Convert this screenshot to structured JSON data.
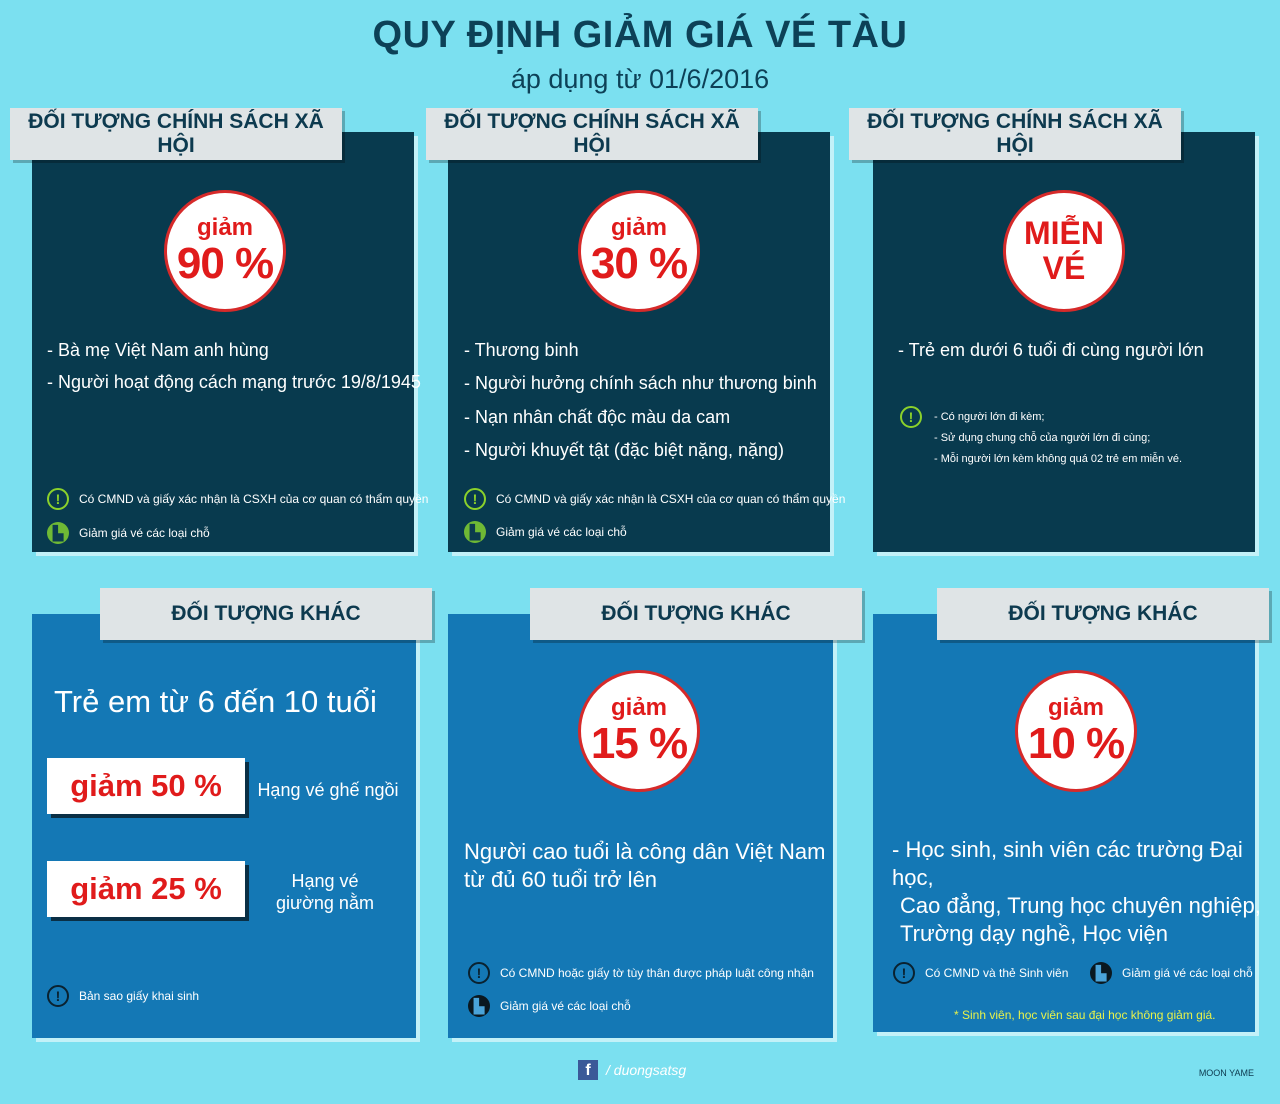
{
  "header": {
    "title": "QUY ĐỊNH GIẢM GIÁ VÉ TÀU",
    "subtitle": "áp dụng từ 01/6/2016"
  },
  "colors": {
    "dark_panel": "#083a4e",
    "blue_panel": "#1478b5",
    "background": "#7be0f0",
    "accent_red": "#e01b1b"
  },
  "panels": [
    {
      "tab": "ĐỐI TƯỢNG CHÍNH SÁCH XÃ HỘI",
      "badge_small": "giảm",
      "badge_big": "90 %",
      "items": [
        "- Bà mẹ Việt Nam anh hùng",
        "- Người hoạt động cách mạng trước 19/8/1945"
      ],
      "note1": "Có CMND và giấy xác nhận là CSXH của cơ quan có thẩm quyền",
      "note2": "Giảm giá vé các loại chỗ"
    },
    {
      "tab": "ĐỐI TƯỢNG CHÍNH SÁCH XÃ HỘI",
      "badge_small": "giảm",
      "badge_big": "30 %",
      "items": [
        "- Thương binh",
        "- Người hưởng chính sách như thương binh",
        "- Nạn nhân chất độc màu da cam",
        "- Người khuyết tật (đặc biệt nặng, nặng)"
      ],
      "note1": "Có CMND và giấy xác nhận là CSXH của cơ quan có thẩm quyền",
      "note2": "Giảm giá vé các loại chỗ"
    },
    {
      "tab": "ĐỐI TƯỢNG CHÍNH SÁCH XÃ HỘI",
      "badge_line1": "MIỄN",
      "badge_line2": "VÉ",
      "items": [
        "- Trẻ em dưới 6 tuổi đi cùng người lớn"
      ],
      "conditions": [
        "- Có người lớn đi kèm;",
        "- Sử dụng chung chỗ của người lớn đi cùng;",
        "- Mỗi người lớn kèm không quá 02 trẻ em miễn vé."
      ]
    },
    {
      "tab": "ĐỐI TƯỢNG KHÁC",
      "heading": "Trẻ em từ 6 đến 10 tuổi",
      "discount1": "giảm 50 %",
      "label1": "Hạng vé ghế ngồi",
      "discount2": "giảm 25 %",
      "label2_line1": "Hạng vé",
      "label2_line2": "giường nằm",
      "note1": "Bản sao giấy khai sinh"
    },
    {
      "tab": "ĐỐI TƯỢNG KHÁC",
      "badge_small": "giảm",
      "badge_big": "15 %",
      "text_line1": "Người cao tuổi là công dân Việt Nam",
      "text_line2": "từ đủ 60 tuổi trở lên",
      "note1": "Có CMND hoặc giấy tờ tùy thân được pháp luật công nhận",
      "note2": "Giảm giá vé các loại chỗ"
    },
    {
      "tab": "ĐỐI TƯỢNG KHÁC",
      "badge_small": "giảm",
      "badge_big": "10 %",
      "text_line1": "- Học sinh, sinh viên các trường Đại học,",
      "text_line2": "Cao đẳng, Trung học chuyên nghiệp,",
      "text_line3": "Trường dạy nghề, Học viện",
      "note1": "Có CMND và thẻ Sinh viên",
      "note2": "Giảm giá vé các loại chỗ",
      "footnote": "* Sinh viên, học viên sau đại học không giảm giá."
    }
  ],
  "footer": {
    "social_handle": "/ duongsatsg",
    "credit": "MOON YAME"
  },
  "icons": {
    "warning": "!",
    "seat": "seat-icon",
    "facebook": "f"
  }
}
